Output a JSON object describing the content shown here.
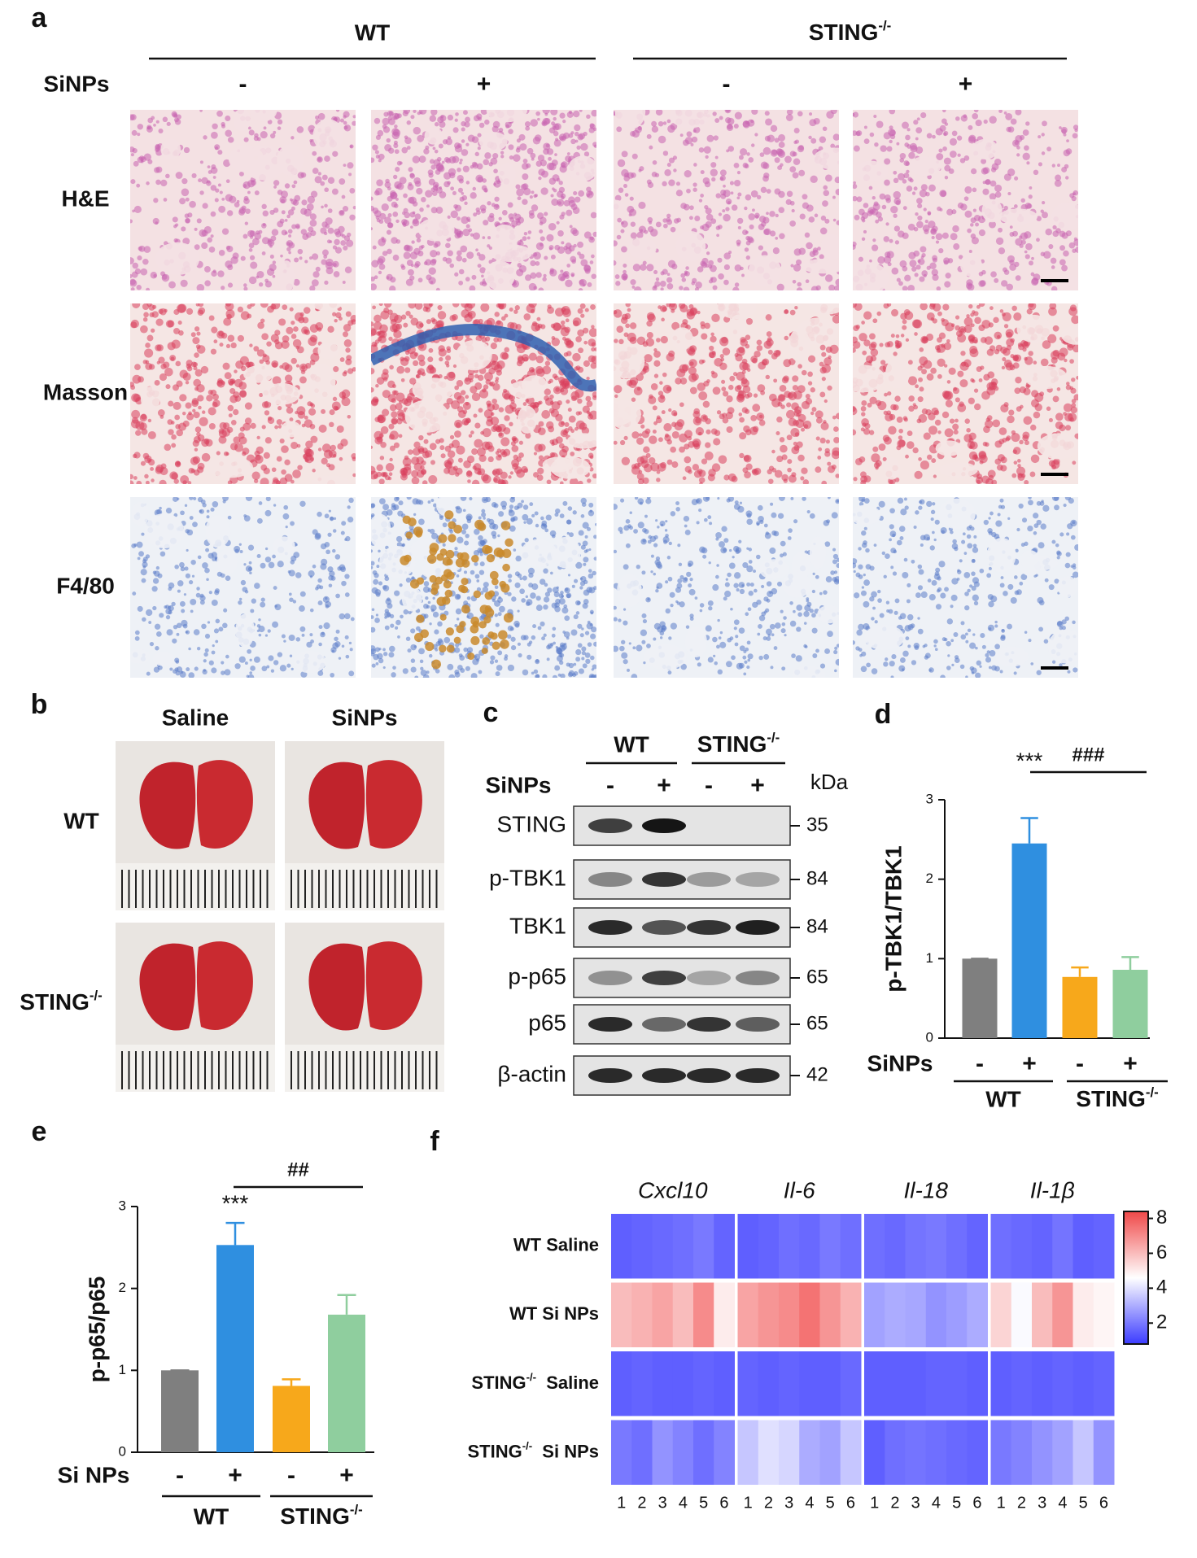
{
  "panel_a": {
    "label": "a",
    "groups": [
      "WT",
      "STING-/-"
    ],
    "treatment_label": "SiNPs",
    "treatments": [
      "-",
      "+",
      "-",
      "+"
    ],
    "stains": [
      "H&E",
      "Masson",
      "F4/80"
    ]
  },
  "panel_b": {
    "label": "b",
    "columns": [
      "Saline",
      "SiNPs"
    ],
    "rows": [
      "WT",
      "STING-/-"
    ]
  },
  "panel_c": {
    "label": "c",
    "groups": [
      "WT",
      "STING-/-"
    ],
    "treatment_label": "SiNPs",
    "treatments": [
      "-",
      "+",
      "-",
      "+"
    ],
    "unit": "kDa",
    "proteins": [
      {
        "name": "STING",
        "kda": 35
      },
      {
        "name": "p-TBK1",
        "kda": 84
      },
      {
        "name": "TBK1",
        "kda": 84
      },
      {
        "name": "p-p65",
        "kda": 65
      },
      {
        "name": "p65",
        "kda": 65
      },
      {
        "name": "β-actin",
        "kda": 42
      }
    ]
  },
  "chart_data": [
    {
      "type": "bar",
      "panel": "d",
      "ylabel": "p-TBK1/TBK1",
      "x_label": "SiNPs",
      "categories": [
        "-",
        "+",
        "-",
        "+"
      ],
      "groups": [
        "WT",
        "STING-/-"
      ],
      "values": [
        1,
        2.45,
        0.77,
        0.86
      ],
      "errors": [
        0,
        0.32,
        0.12,
        0.16
      ],
      "colors": [
        "#7f7f7f",
        "#2f8fe0",
        "#f7a81b",
        "#8fce9e"
      ],
      "ylim": [
        0,
        3
      ],
      "yticks": [
        0,
        1,
        2,
        3
      ],
      "significance": {
        "vs_control": "***",
        "between_groups": "###"
      }
    },
    {
      "type": "bar",
      "panel": "e",
      "ylabel": "p-p65/p65",
      "x_label": "Si NPs",
      "categories": [
        "-",
        "+",
        "-",
        "+"
      ],
      "groups": [
        "WT",
        "STING-/-"
      ],
      "values": [
        1,
        2.53,
        0.81,
        1.68
      ],
      "errors": [
        0,
        0.27,
        0.08,
        0.24
      ],
      "colors": [
        "#7f7f7f",
        "#2f8fe0",
        "#f7a81b",
        "#8fce9e"
      ],
      "ylim": [
        0,
        3
      ],
      "yticks": [
        0,
        1,
        2,
        3
      ],
      "significance": {
        "vs_control": "***",
        "between_groups": "##"
      }
    },
    {
      "type": "heatmap",
      "panel": "f",
      "genes": [
        "Cxcl10",
        "Il-6",
        "Il-18",
        "Il-1β"
      ],
      "rows": [
        "WT Saline",
        "WT Si NPs",
        "STING-/- Saline",
        "STING-/- Si NPs"
      ],
      "columns": [
        1,
        2,
        3,
        4,
        5,
        6
      ],
      "values": [
        [
          [
            1.5,
            1.6,
            1.7,
            1.8,
            2.0,
            1.6
          ],
          [
            1.5,
            1.6,
            1.8,
            1.7,
            2.0,
            1.8
          ],
          [
            1.8,
            1.7,
            1.9,
            2.0,
            1.8,
            1.6
          ],
          [
            1.8,
            1.7,
            1.6,
            1.9,
            1.5,
            1.6
          ]
        ],
        [
          [
            6.0,
            6.2,
            6.5,
            6.0,
            7.0,
            5.0
          ],
          [
            6.5,
            6.8,
            7.0,
            7.5,
            6.8,
            6.2
          ],
          [
            2.8,
            3.0,
            2.9,
            2.5,
            2.7,
            3.0
          ],
          [
            5.5,
            4.5,
            6.0,
            6.8,
            5.0,
            4.8
          ]
        ],
        [
          [
            1.5,
            1.6,
            1.5,
            1.5,
            1.6,
            1.5
          ],
          [
            1.6,
            1.5,
            1.6,
            1.5,
            1.5,
            1.7
          ],
          [
            1.5,
            1.5,
            1.5,
            1.6,
            1.6,
            1.5
          ],
          [
            1.5,
            1.6,
            1.5,
            1.6,
            1.5,
            1.6
          ]
        ],
        [
          [
            2.0,
            1.8,
            2.5,
            2.2,
            1.8,
            2.2
          ],
          [
            3.5,
            4.0,
            3.8,
            3.0,
            2.8,
            3.5
          ],
          [
            1.5,
            1.8,
            1.9,
            1.8,
            1.7,
            1.6
          ],
          [
            2.0,
            2.2,
            2.5,
            2.8,
            3.5,
            2.5
          ]
        ]
      ],
      "clim": [
        0.8,
        8.4
      ],
      "cticks": [
        2,
        4,
        6,
        8
      ],
      "colormap": [
        "#3b3bff",
        "#ffffff",
        "#f04848"
      ]
    }
  ]
}
